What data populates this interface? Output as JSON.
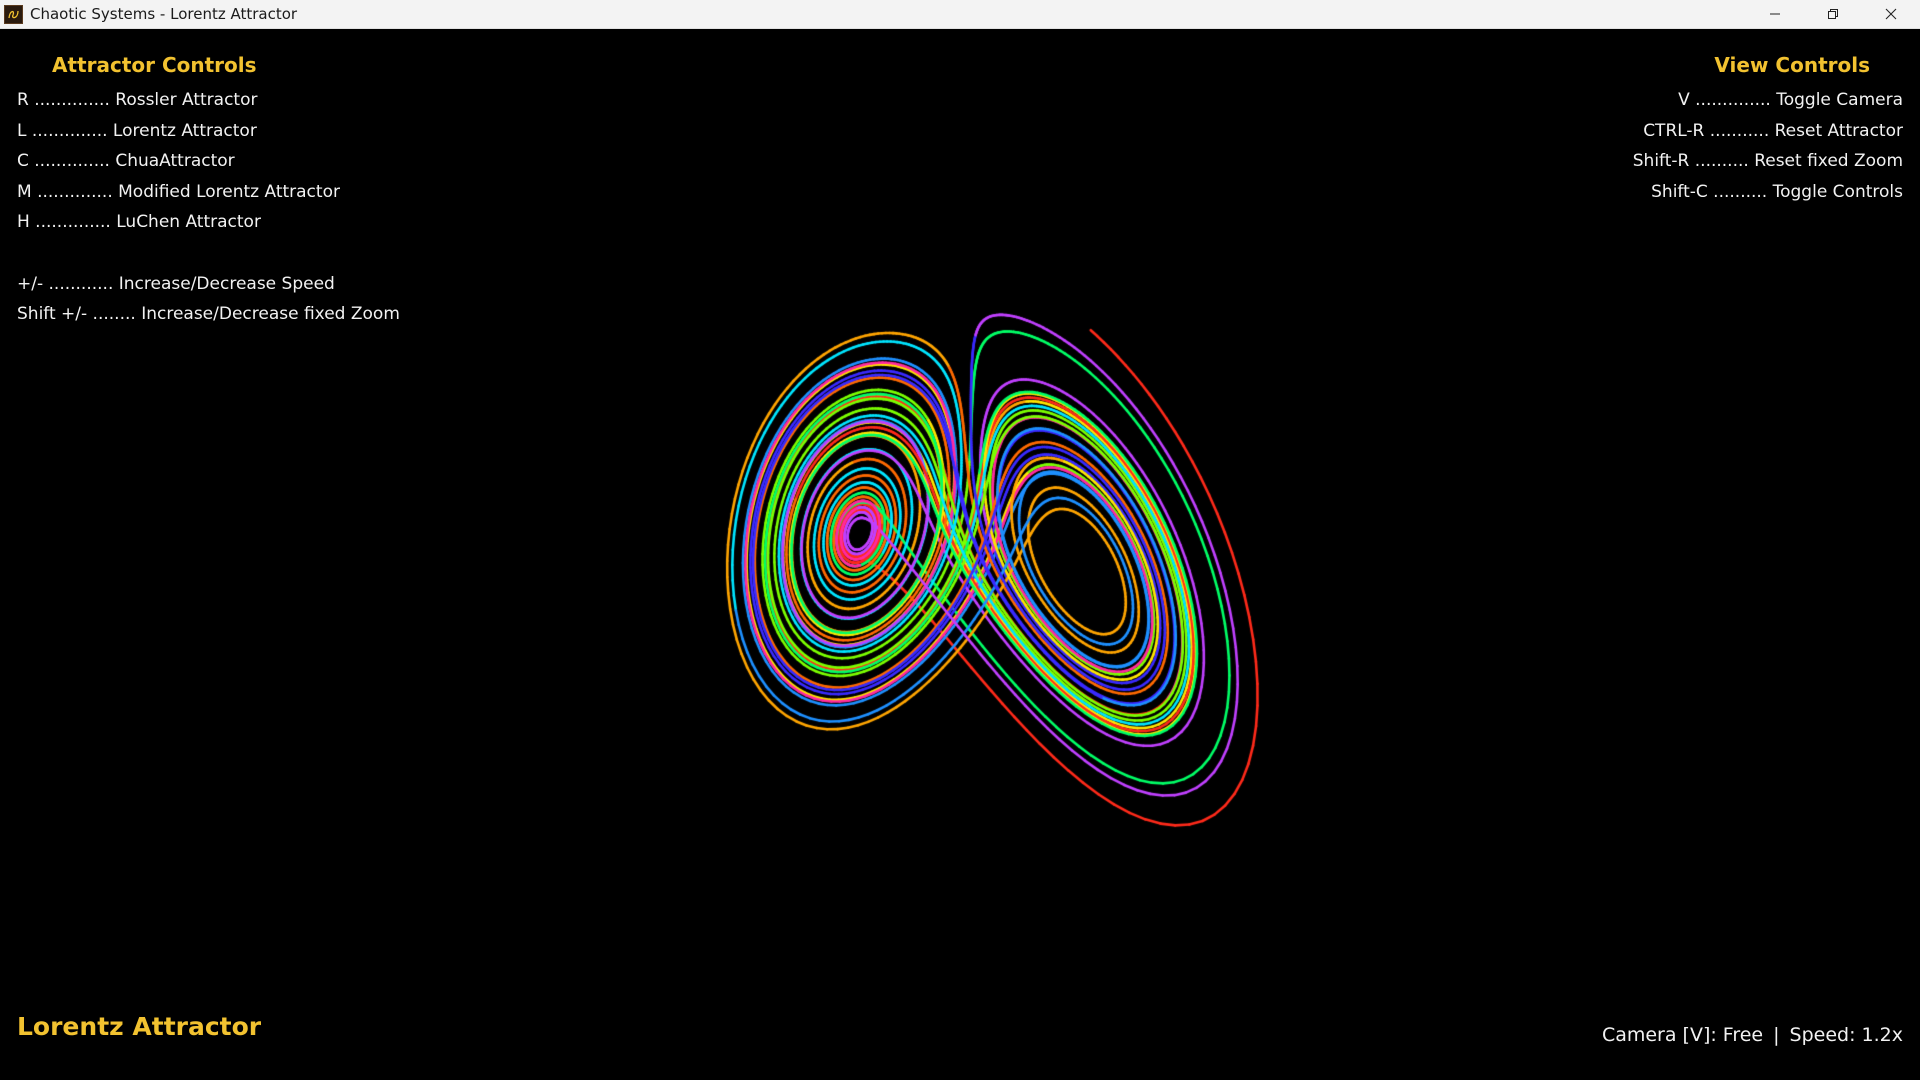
{
  "window": {
    "title": "Chaotic Systems - Lorentz Attractor",
    "icons": [
      "app-icon",
      "minimize-icon",
      "restore-icon",
      "close-icon"
    ]
  },
  "attractor_controls": {
    "heading": "Attractor Controls",
    "items": [
      "R .............. Rossler Attractor",
      "L .............. Lorentz Attractor",
      "C .............. ChuaAttractor",
      "M .............. Modified Lorentz Attractor",
      "H .............. LuChen Attractor"
    ],
    "speed_items": [
      "+/- ............ Increase/Decrease Speed",
      "Shift +/- ........ Increase/Decrease fixed Zoom"
    ]
  },
  "view_controls": {
    "heading": "View Controls",
    "items": [
      "V .............. Toggle Camera",
      "CTRL-R ........... Reset Attractor",
      "Shift-R .......... Reset fixed Zoom",
      "Shift-C .......... Toggle Controls"
    ]
  },
  "status": {
    "attractor_name": "Lorentz Attractor",
    "camera": "Camera [V]: Free",
    "separator": "|",
    "speed": "Speed: 1.2x"
  },
  "colors": {
    "heading": "#f2c230",
    "text": "#f2f2f2",
    "background": "#000000",
    "trail_palette": [
      "#ff2a1a",
      "#ff6a00",
      "#ffa500",
      "#ffe600",
      "#7cff00",
      "#00ff66",
      "#00e5ff",
      "#1e90ff",
      "#3a2aff",
      "#c040ff",
      "#ff2aa0"
    ]
  }
}
